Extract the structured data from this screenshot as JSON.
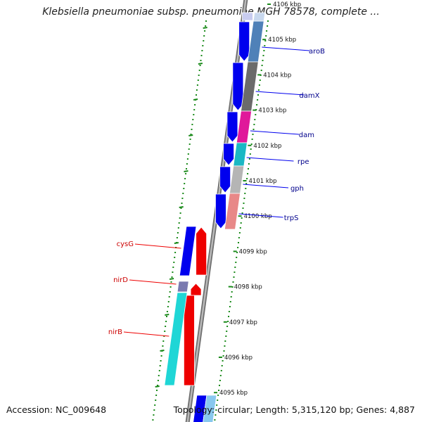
{
  "header": {
    "title": "Klebsiella pneumoniae subsp. pneumoniae MGH 78578, complete ..."
  },
  "footer": {
    "accession": "Accession: NC_009648",
    "topology": "Topology: circular; Length: 5,315,120 bp; Genes: 4,887"
  },
  "colors": {
    "forward": "#0000ee",
    "reverse": "#ee0000",
    "forward_label": "#00008b",
    "reverse_label": "#cc0000",
    "backbone": "#8c8c8c",
    "tick": "#1a8a1a"
  },
  "ticks": [
    "4106 kbp",
    "4105 kbp",
    "4104 kbp",
    "4103 kbp",
    "4102 kbp",
    "4101 kbp",
    "4100 kbp",
    "4099 kbp",
    "4098 kbp",
    "4097 kbp",
    "4096 kbp",
    "4095 kbp"
  ],
  "genes_forward": [
    {
      "name": "aroB",
      "cog_color": "#4f81b8"
    },
    {
      "name": "damX",
      "cog_color": "#6b6b6b"
    },
    {
      "name": "dam",
      "cog_color": "#e0189a"
    },
    {
      "name": "rpe",
      "cog_color": "#1ab8c4"
    },
    {
      "name": "gph",
      "cog_color": "#b5b5b5"
    },
    {
      "name": "trpS",
      "cog_color": "#e88888"
    }
  ],
  "genes_reverse": [
    {
      "name": "cysG",
      "cog_color": "#0000ee"
    },
    {
      "name": "nirD",
      "cog_color": "#7a7ab0"
    },
    {
      "name": "nirB",
      "cog_color": "#1fd6d6"
    }
  ]
}
